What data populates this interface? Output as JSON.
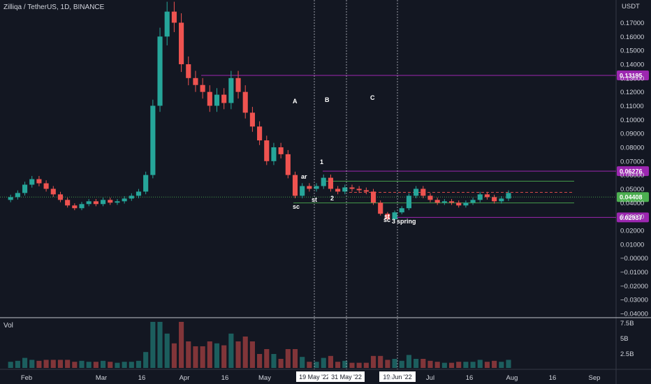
{
  "chart_data": {
    "type": "candlestick",
    "title": "Zilliqa / TetherUS, 1D, BINANCE",
    "price_unit": "USDT",
    "volume_label": "Vol",
    "y_ticks": [
      "0.17000",
      "0.16000",
      "0.15000",
      "0.14000",
      "0.13000",
      "0.12000",
      "0.11000",
      "0.10000",
      "0.09000",
      "0.08000",
      "0.07000",
      "0.06000",
      "0.05000",
      "0.04000",
      "0.03000",
      "0.02000",
      "0.01000",
      "−0.00000",
      "−0.01000",
      "−0.02000",
      "−0.03000",
      "−0.04000"
    ],
    "ylim": [
      -0.04,
      0.17
    ],
    "volume_ticks": [
      "7.5B",
      "5B",
      "2.5B"
    ],
    "x_ticks": [
      "Feb",
      "Mar",
      "16",
      "Apr",
      "16",
      "May",
      "Jun",
      "Jul",
      "16",
      "Aug",
      "16",
      "Sep"
    ],
    "date_markers": [
      "19 May '22",
      "31 May '22",
      "19 Jun '22"
    ],
    "price_levels": [
      {
        "label": "0.13195",
        "value": 0.13195,
        "color": "#9c27b0"
      },
      {
        "label": "0.06276",
        "value": 0.06276,
        "color": "#9c27b0"
      },
      {
        "label": "0.04408",
        "value": 0.04408,
        "color": "#4caf50"
      },
      {
        "label": "0.02937",
        "value": 0.02937,
        "color": "#9c27b0"
      }
    ],
    "annotations": [
      "A",
      "B",
      "C",
      "ar",
      "sc",
      "st",
      "1",
      "2",
      "sc",
      "st",
      "3",
      "spring"
    ],
    "series": [
      {
        "values": [
          0.042,
          0.044,
          0.047,
          0.053,
          0.057,
          0.054,
          0.05,
          0.046,
          0.042,
          0.038,
          0.036,
          0.039,
          0.041,
          0.039,
          0.042,
          0.04,
          0.041,
          0.043,
          0.045,
          0.048,
          0.06,
          0.11,
          0.16,
          0.178,
          0.17,
          0.14,
          0.13,
          0.125,
          0.12,
          0.11,
          0.118,
          0.112,
          0.13,
          0.12,
          0.105,
          0.095,
          0.085,
          0.07,
          0.08,
          0.075,
          0.06,
          0.045,
          0.052,
          0.05,
          0.052,
          0.058,
          0.05,
          0.048,
          0.051,
          0.05,
          0.049,
          0.048,
          0.04,
          0.032,
          0.028,
          0.033,
          0.036,
          0.045,
          0.05,
          0.045,
          0.042,
          0.04,
          0.041,
          0.04,
          0.038,
          0.04,
          0.042,
          0.046,
          0.044,
          0.041,
          0.043,
          0.047
        ]
      }
    ]
  }
}
